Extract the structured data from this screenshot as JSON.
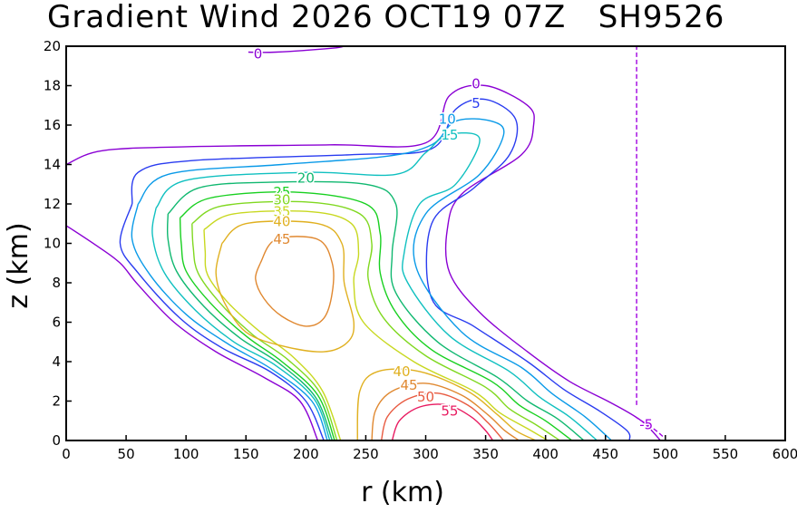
{
  "chart_data": {
    "type": "contour",
    "title": "Gradient Wind 2026 OCT19 07Z   SH9526",
    "xlabel": "r (km)",
    "ylabel": "z (km)",
    "xlim": [
      0,
      600
    ],
    "ylim": [
      0,
      20
    ],
    "xticks": [
      0,
      50,
      100,
      150,
      200,
      250,
      300,
      350,
      400,
      450,
      500,
      550,
      600
    ],
    "yticks": [
      0,
      2,
      4,
      6,
      8,
      10,
      12,
      14,
      16,
      18,
      20
    ],
    "grid": false,
    "legend": "none",
    "contour_levels": [
      -5,
      0,
      5,
      10,
      15,
      20,
      25,
      30,
      35,
      40,
      45,
      50,
      55
    ],
    "contours": [
      {
        "level": 0,
        "label": "0",
        "color": "#8a00d4",
        "points": [
          [
            0,
            14
          ],
          [
            30,
            14.7
          ],
          [
            100,
            14.9
          ],
          [
            220,
            15
          ],
          [
            300,
            15.1
          ],
          [
            320,
            17.5
          ],
          [
            350,
            18
          ],
          [
            385,
            17
          ],
          [
            390,
            16
          ],
          [
            380,
            14.5
          ],
          [
            330,
            12.5
          ],
          [
            318,
            10.7
          ],
          [
            320,
            8.5
          ],
          [
            345,
            6.5
          ],
          [
            385,
            4.5
          ],
          [
            420,
            3
          ],
          [
            455,
            1.9
          ],
          [
            480,
            1
          ],
          [
            496,
            0
          ]
        ]
      },
      {
        "level": 0,
        "label": "",
        "color": "#8a00d4",
        "points": [
          [
            0,
            10.9
          ],
          [
            25,
            9.9
          ],
          [
            45,
            9
          ],
          [
            60,
            7.9
          ],
          [
            90,
            6
          ],
          [
            125,
            4.5
          ],
          [
            165,
            3.2
          ],
          [
            195,
            2
          ],
          [
            210,
            0
          ]
        ]
      },
      {
        "level": 0,
        "label": "0",
        "color": "#8a00d4",
        "points": [
          [
            152,
            19.7
          ],
          [
            175,
            19.7
          ],
          [
            222,
            19.9
          ],
          [
            232,
            20
          ]
        ]
      },
      {
        "level": 5,
        "label": "5",
        "color": "#2a3cf0",
        "points": [
          [
            55,
            12
          ],
          [
            60,
            13.6
          ],
          [
            105,
            14.2
          ],
          [
            240,
            14.5
          ],
          [
            305,
            14.8
          ],
          [
            325,
            16.8
          ],
          [
            350,
            17.3
          ],
          [
            375,
            16.3
          ],
          [
            370,
            14.5
          ],
          [
            340,
            12.8
          ],
          [
            305,
            11
          ],
          [
            305,
            7.2
          ],
          [
            340,
            5.8
          ],
          [
            385,
            4
          ],
          [
            415,
            2.6
          ],
          [
            445,
            1.5
          ],
          [
            468,
            0.5
          ],
          [
            470,
            0
          ]
        ]
      },
      {
        "level": 5,
        "label": "",
        "color": "#2a3cf0",
        "points": [
          [
            55,
            12
          ],
          [
            45,
            10
          ],
          [
            60,
            8.5
          ],
          [
            95,
            6.2
          ],
          [
            130,
            4.7
          ],
          [
            170,
            3.5
          ],
          [
            200,
            2
          ],
          [
            215,
            0
          ]
        ]
      },
      {
        "level": 10,
        "label": "10",
        "color": "#0a9ae8",
        "points": [
          [
            60,
            12
          ],
          [
            85,
            13.5
          ],
          [
            180,
            14
          ],
          [
            265,
            14.4
          ],
          [
            305,
            15
          ],
          [
            325,
            16.2
          ],
          [
            355,
            16.2
          ],
          [
            365,
            15.5
          ],
          [
            345,
            13.5
          ],
          [
            300,
            11.5
          ],
          [
            292,
            8.8
          ],
          [
            330,
            5.5
          ],
          [
            380,
            3.7
          ],
          [
            405,
            2.4
          ],
          [
            433,
            1.2
          ],
          [
            455,
            0
          ]
        ]
      },
      {
        "level": 10,
        "label": "",
        "color": "#0a9ae8",
        "points": [
          [
            60,
            12
          ],
          [
            55,
            10.2
          ],
          [
            70,
            8.4
          ],
          [
            100,
            6.4
          ],
          [
            135,
            4.9
          ],
          [
            172,
            3.6
          ],
          [
            205,
            2
          ],
          [
            218,
            0
          ]
        ]
      },
      {
        "level": 15,
        "label": "15",
        "color": "#10c0c0",
        "points": [
          [
            75,
            11.8
          ],
          [
            100,
            13.2
          ],
          [
            200,
            13.6
          ],
          [
            275,
            13.5
          ],
          [
            300,
            14.6
          ],
          [
            318,
            15.5
          ],
          [
            345,
            15.3
          ],
          [
            325,
            13
          ],
          [
            295,
            12
          ],
          [
            282,
            9.5
          ],
          [
            285,
            8
          ],
          [
            320,
            5.3
          ],
          [
            370,
            3.5
          ],
          [
            395,
            2.2
          ],
          [
            420,
            1.2
          ],
          [
            443,
            0
          ]
        ]
      },
      {
        "level": 15,
        "label": "",
        "color": "#10c0c0",
        "points": [
          [
            75,
            11.8
          ],
          [
            72,
            10.4
          ],
          [
            82,
            8.5
          ],
          [
            108,
            6.6
          ],
          [
            140,
            5
          ],
          [
            175,
            3.8
          ],
          [
            207,
            2.1
          ],
          [
            220,
            0
          ]
        ]
      },
      {
        "level": 20,
        "label": "20",
        "color": "#10b870",
        "points": [
          [
            85,
            11.5
          ],
          [
            110,
            12.8
          ],
          [
            170,
            13.1
          ],
          [
            250,
            13
          ],
          [
            275,
            12
          ],
          [
            272,
            9.5
          ],
          [
            275,
            7.5
          ],
          [
            310,
            5
          ],
          [
            360,
            3.2
          ],
          [
            385,
            2
          ],
          [
            410,
            1.1
          ],
          [
            432,
            0
          ]
        ]
      },
      {
        "level": 20,
        "label": "",
        "color": "#10b870",
        "points": [
          [
            85,
            11.5
          ],
          [
            85,
            10.2
          ],
          [
            92,
            8.6
          ],
          [
            115,
            6.8
          ],
          [
            145,
            5.2
          ],
          [
            178,
            3.9
          ],
          [
            208,
            2.2
          ],
          [
            222,
            0
          ]
        ]
      },
      {
        "level": 25,
        "label": "25",
        "color": "#18d020",
        "points": [
          [
            95,
            11.3
          ],
          [
            120,
            12.3
          ],
          [
            190,
            12.6
          ],
          [
            250,
            12
          ],
          [
            262,
            10.5
          ],
          [
            262,
            8.5
          ],
          [
            275,
            6.5
          ],
          [
            305,
            4.6
          ],
          [
            355,
            3
          ],
          [
            378,
            1.8
          ],
          [
            400,
            1
          ],
          [
            422,
            0
          ]
        ]
      },
      {
        "level": 25,
        "label": "",
        "color": "#18d020",
        "points": [
          [
            95,
            11.3
          ],
          [
            96,
            10
          ],
          [
            100,
            8.6
          ],
          [
            120,
            7
          ],
          [
            150,
            5.3
          ],
          [
            180,
            4
          ],
          [
            210,
            2.3
          ],
          [
            224,
            0
          ]
        ]
      },
      {
        "level": 30,
        "label": "30",
        "color": "#80d820",
        "points": [
          [
            105,
            11
          ],
          [
            130,
            11.9
          ],
          [
            200,
            12.1
          ],
          [
            245,
            11.5
          ],
          [
            255,
            10
          ],
          [
            252,
            8.2
          ],
          [
            265,
            6.2
          ],
          [
            300,
            4.3
          ],
          [
            350,
            2.7
          ],
          [
            370,
            1.6
          ],
          [
            392,
            0.8
          ],
          [
            412,
            0
          ]
        ]
      },
      {
        "level": 30,
        "label": "",
        "color": "#80d820",
        "points": [
          [
            105,
            11
          ],
          [
            106,
            9.8
          ],
          [
            110,
            8.5
          ],
          [
            128,
            7
          ],
          [
            155,
            5.4
          ],
          [
            185,
            4.1
          ],
          [
            212,
            2.4
          ],
          [
            226,
            0
          ]
        ]
      },
      {
        "level": 35,
        "label": "35",
        "color": "#c8d820",
        "points": [
          [
            115,
            10.7
          ],
          [
            140,
            11.5
          ],
          [
            205,
            11.6
          ],
          [
            238,
            11
          ],
          [
            244,
            9.5
          ],
          [
            240,
            8
          ],
          [
            248,
            6
          ],
          [
            290,
            4
          ],
          [
            340,
            2.5
          ],
          [
            362,
            1.4
          ],
          [
            385,
            0.6
          ],
          [
            402,
            0
          ]
        ]
      },
      {
        "level": 35,
        "label": "",
        "color": "#c8d820",
        "points": [
          [
            115,
            10.7
          ],
          [
            116,
            9.6
          ],
          [
            118,
            8.4
          ],
          [
            135,
            7
          ],
          [
            160,
            5.6
          ],
          [
            190,
            4.2
          ],
          [
            214,
            2.5
          ],
          [
            229,
            0
          ]
        ]
      },
      {
        "level": 40,
        "label": "40",
        "color": "#e0b020",
        "points": [
          [
            130,
            10
          ],
          [
            150,
            11
          ],
          [
            210,
            11
          ],
          [
            230,
            10
          ],
          [
            232,
            8
          ],
          [
            240,
            6
          ],
          [
            235,
            5
          ],
          [
            215,
            4.5
          ],
          [
            180,
            4.8
          ],
          [
            150,
            5.5
          ],
          [
            132,
            7
          ],
          [
            125,
            8.5
          ],
          [
            130,
            10
          ]
        ]
      },
      {
        "level": 40,
        "label": "40",
        "color": "#e0b020",
        "points": [
          [
            243,
            0
          ],
          [
            245,
            2.5
          ],
          [
            260,
            3.5
          ],
          [
            295,
            3.5
          ],
          [
            335,
            2.5
          ],
          [
            360,
            1.3
          ],
          [
            375,
            0.5
          ],
          [
            392,
            0
          ]
        ]
      },
      {
        "level": 45,
        "label": "45",
        "color": "#e08830",
        "points": [
          [
            162,
            9
          ],
          [
            175,
            10.2
          ],
          [
            210,
            10.2
          ],
          [
            222,
            9
          ],
          [
            222,
            7.5
          ],
          [
            215,
            6.2
          ],
          [
            200,
            5.8
          ],
          [
            180,
            6.3
          ],
          [
            165,
            7.2
          ],
          [
            158,
            8.2
          ],
          [
            162,
            9
          ]
        ]
      },
      {
        "level": 45,
        "label": "45",
        "color": "#e08830",
        "points": [
          [
            255,
            0
          ],
          [
            258,
            1.5
          ],
          [
            272,
            2.5
          ],
          [
            300,
            2.9
          ],
          [
            330,
            2.3
          ],
          [
            352,
            1.3
          ],
          [
            366,
            0.5
          ],
          [
            378,
            0
          ]
        ]
      },
      {
        "level": 50,
        "label": "50",
        "color": "#e85a40",
        "points": [
          [
            263,
            0
          ],
          [
            268,
            1.2
          ],
          [
            285,
            2.1
          ],
          [
            310,
            2.4
          ],
          [
            335,
            1.8
          ],
          [
            352,
            0.9
          ],
          [
            365,
            0
          ]
        ]
      },
      {
        "level": 55,
        "label": "55",
        "color": "#e81a60",
        "points": [
          [
            272,
            0
          ],
          [
            278,
            1
          ],
          [
            295,
            1.7
          ],
          [
            318,
            1.8
          ],
          [
            338,
            1.2
          ],
          [
            350,
            0.5
          ],
          [
            356,
            0
          ]
        ]
      },
      {
        "level": -5,
        "label": "",
        "color": "#a000e0",
        "dashed": true,
        "points": [
          [
            476,
            1.8
          ],
          [
            476,
            20
          ]
        ]
      },
      {
        "level": -5,
        "label": "-5",
        "color": "#a000e0",
        "dashed": true,
        "points": [
          [
            475,
            1.2
          ],
          [
            490,
            0.6
          ],
          [
            498,
            0.2
          ]
        ]
      }
    ]
  }
}
